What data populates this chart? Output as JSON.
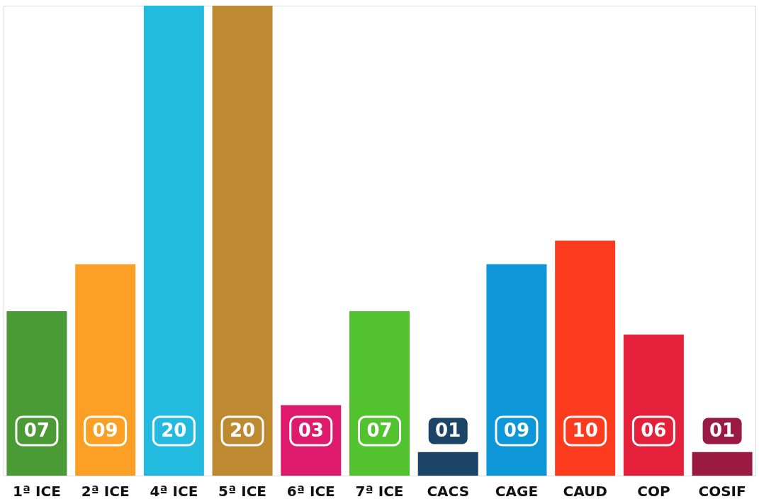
{
  "chart_data": {
    "type": "bar",
    "categories": [
      "1ª ICE",
      "2ª ICE",
      "4ª ICE",
      "5ª ICE",
      "6ª ICE",
      "7ª ICE",
      "CACS",
      "CAGE",
      "CAUD",
      "COP",
      "COSIF"
    ],
    "values": [
      7,
      9,
      20,
      20,
      3,
      7,
      1,
      9,
      10,
      6,
      1
    ],
    "colors": [
      "#4a9a36",
      "#fc9f25",
      "#23bae0",
      "#be8a31",
      "#de1a6c",
      "#52c22f",
      "#1b4466",
      "#0d96d8",
      "#fc3b1f",
      "#e5203b",
      "#9b1a42"
    ],
    "value_labels": [
      "07",
      "09",
      "20",
      "20",
      "03",
      "07",
      "01",
      "09",
      "10",
      "06",
      "01"
    ],
    "ylim": [
      0,
      20
    ],
    "tick_labels": "x",
    "grid": false
  }
}
